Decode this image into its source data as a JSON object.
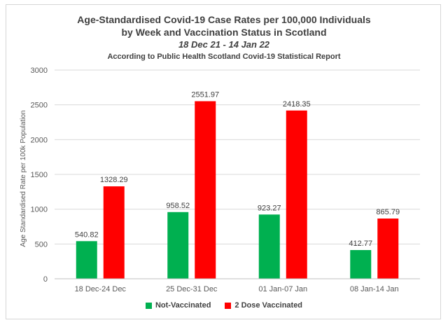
{
  "chart_data": {
    "type": "bar",
    "title": "Age-Standardised Covid-19 Case Rates per 100,000 Individuals",
    "title_line2": "by Week and Vaccination Status in Scotland",
    "subtitle": "18 Dec 21 - 14 Jan 22",
    "source_note": "According to Public Health Scotland Covid-19 Statistical Report",
    "xlabel": "",
    "ylabel": "Age Standardised Rate per 100k Population",
    "ylim": [
      0,
      3000
    ],
    "yticks": [
      0,
      500,
      1000,
      1500,
      2000,
      2500,
      3000
    ],
    "grid": true,
    "legend_position": "bottom",
    "categories": [
      "18 Dec-24 Dec",
      "25 Dec-31 Dec",
      "01 Jan-07 Jan",
      "08 Jan-14 Jan"
    ],
    "series": [
      {
        "name": "Not-Vaccinated",
        "color": "#00b050",
        "values": [
          540.82,
          958.52,
          923.27,
          412.77
        ],
        "labels": [
          "540.82",
          "958.52",
          "923.27",
          "412.77"
        ]
      },
      {
        "name": "2 Dose Vaccinated",
        "color": "#ff0000",
        "values": [
          1328.29,
          2551.97,
          2418.35,
          865.79
        ],
        "labels": [
          "1328.29",
          "2551.97",
          "2418.35",
          "865.79"
        ]
      }
    ]
  }
}
